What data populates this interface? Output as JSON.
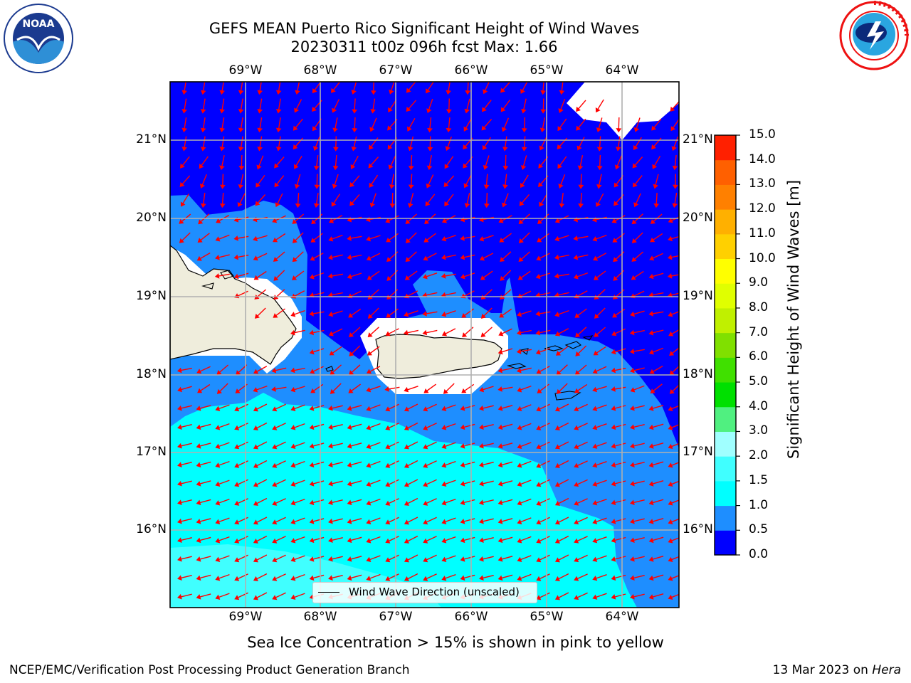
{
  "header": {
    "title_line1": "GEFS MEAN Puerto Rico Significant Height of Wind Waves",
    "title_line2": "20230311 t00z 096h fcst   Max: 1.66"
  },
  "logos": {
    "left": {
      "icon": "noaa-logo",
      "text": "NOAA",
      "ring_text": "NATIONAL OCEANIC AND ATMOSPHERIC ADMINISTRATION · U.S. DEPARTMENT OF COMMERCE"
    },
    "right": {
      "icon": "nws-logo",
      "ring_text": "NATIONAL WEATHER SERVICE"
    }
  },
  "map": {
    "lon_labels": [
      "69°W",
      "68°W",
      "67°W",
      "66°W",
      "65°W",
      "64°W"
    ],
    "lat_labels": [
      "21°N",
      "20°N",
      "19°N",
      "18°N",
      "17°N",
      "16°N"
    ],
    "legend_text": "Wind Wave Direction (unscaled)",
    "arrow_color": "#ff0000",
    "land_color": "#efeddc"
  },
  "colorbar": {
    "label": "Significant Height of Wind Waves [m]",
    "tick_labels": [
      "0.0",
      "0.5",
      "1.0",
      "1.5",
      "2.0",
      "3.0",
      "4.0",
      "5.0",
      "6.0",
      "7.0",
      "8.0",
      "9.0",
      "10.0",
      "11.0",
      "12.0",
      "13.0",
      "14.0",
      "15.0"
    ],
    "colors": [
      "#0000ff",
      "#1e8eff",
      "#00ffff",
      "#40ffff",
      "#a0ffff",
      "#50f080",
      "#00e000",
      "#40e000",
      "#80e000",
      "#c0f000",
      "#e0ff00",
      "#ffff00",
      "#ffd000",
      "#ffb000",
      "#ff8000",
      "#ff6000",
      "#ff2000"
    ]
  },
  "notes": {
    "sea_ice": "Sea Ice Concentration > 15% is shown in pink to yellow"
  },
  "footer": {
    "left": "NCEP/EMC/Verification Post Processing Product Generation Branch",
    "date": "13 Mar 2023 on ",
    "machine": "Hera"
  }
}
